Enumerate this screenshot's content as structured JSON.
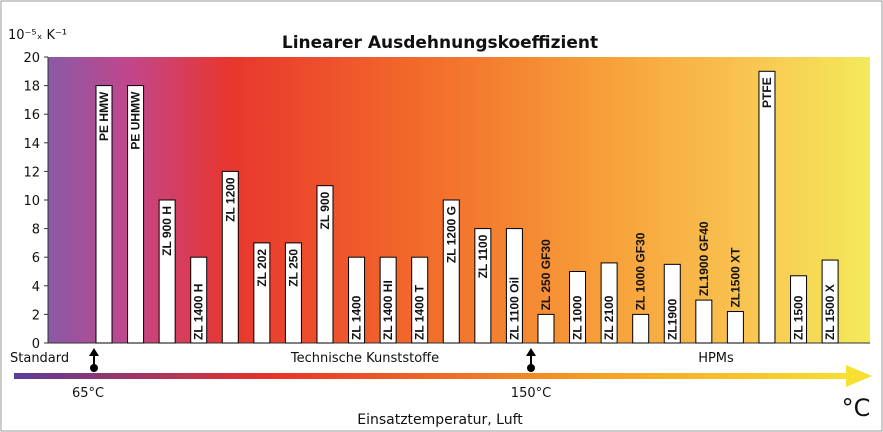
{
  "chart_data": {
    "type": "bar",
    "title": "Linearer Ausdehnungskoeffizient",
    "y_unit": "10⁻⁵ₓ K⁻¹",
    "categories": [
      "PE HMW",
      "PE UHMW",
      "ZL 900 H",
      "ZL 1400 H",
      "ZL 1200",
      "ZL 202",
      "ZL 250",
      "ZL 900",
      "ZL 1400",
      "ZL 1400 HI",
      "ZL 1400 T",
      "ZL 1200 G",
      "ZL 1100",
      "ZL 1100 Oil",
      "ZL 250 GF30",
      "ZL 1000",
      "ZL 2100",
      "ZL 1000 GF30",
      "ZL1900",
      "ZL1900 GF40",
      "ZL1500 XT",
      "PTFE",
      "ZL 1500",
      "ZL 1500 X"
    ],
    "values": [
      18,
      18,
      10,
      6,
      12,
      7,
      7,
      11,
      6,
      6,
      6,
      10,
      8,
      8,
      2,
      5,
      5.6,
      2,
      5.5,
      3,
      2.2,
      19,
      4.7,
      5.8
    ],
    "color": "#ffffff",
    "ylim": [
      0,
      20
    ],
    "yticks": [
      0,
      2,
      4,
      6,
      8,
      10,
      12,
      14,
      16,
      18,
      20
    ],
    "grid": false,
    "annotations": {
      "standard": "Standard",
      "technical": "Technische Kunststoffe",
      "hpm": "HPMs",
      "temp_low": "65°C",
      "temp_high": "150°C",
      "temp_unit": "°C",
      "x_label": "Einsatztemperatur, Luft"
    }
  }
}
